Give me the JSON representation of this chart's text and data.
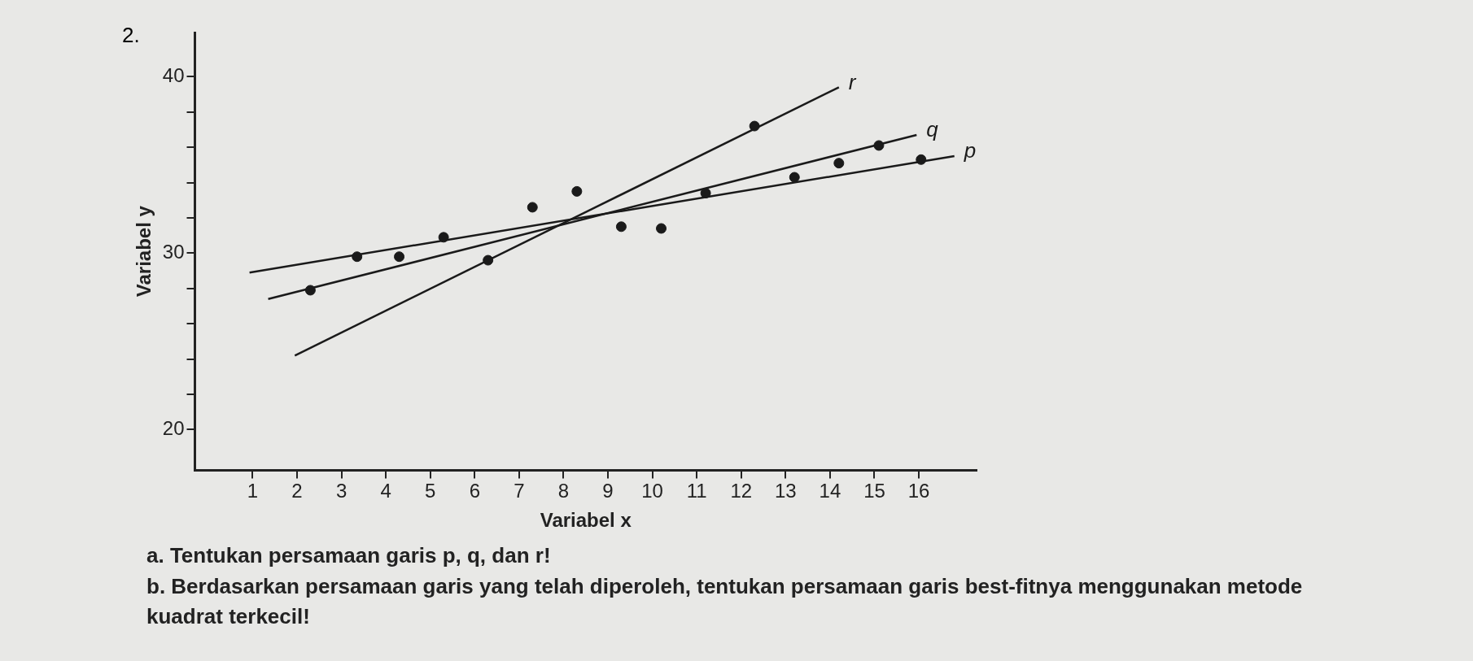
{
  "chart_data": {
    "type": "scatter",
    "xlabel": "Variabel x",
    "ylabel": "Variabel y",
    "xlim": [
      -0.3,
      17.3
    ],
    "ylim": [
      17.7,
      42.5
    ],
    "xticks": [
      1,
      2,
      3,
      4,
      5,
      6,
      7,
      8,
      9,
      10,
      11,
      12,
      13,
      14,
      15,
      16
    ],
    "yticks": [
      20,
      {
        "value": 22,
        "label": null
      },
      {
        "value": 24,
        "label": null
      },
      {
        "value": 26,
        "label": null
      },
      {
        "value": 28,
        "label": null
      },
      30,
      {
        "value": 32,
        "label": null
      },
      {
        "value": 34,
        "label": null
      },
      {
        "value": 36,
        "label": null
      },
      {
        "value": 38,
        "label": null
      },
      40
    ],
    "grid": false,
    "legend": false,
    "marker": "circle",
    "series": [
      {
        "color": "#1a1a1a",
        "x": [
          2.3,
          3.35,
          4.3,
          5.3,
          6.3,
          7.3,
          8.3,
          9.3,
          10.2,
          11.2,
          12.3,
          13.2,
          14.2,
          15.1,
          16.05
        ],
        "values": [
          27.9,
          29.8,
          29.8,
          30.9,
          29.6,
          32.6,
          33.5,
          31.5,
          31.4,
          33.4,
          37.2,
          34.3,
          35.1,
          36.1,
          35.3
        ]
      },
      {
        "type": "line",
        "name": "r",
        "marker": "none",
        "color": "#1a1a1a",
        "x": [
          1.95,
          14.2
        ],
        "values": [
          24.2,
          39.4
        ]
      },
      {
        "type": "line",
        "name": "q",
        "marker": "none",
        "color": "#1a1a1a",
        "x": [
          1.35,
          15.95
        ],
        "values": [
          27.4,
          36.7
        ]
      },
      {
        "type": "line",
        "name": "p",
        "marker": "none",
        "color": "#1a1a1a",
        "x": [
          0.93,
          16.8
        ],
        "values": [
          28.9,
          35.5
        ]
      }
    ],
    "annotations": [
      "2.",
      "a. Tentukan persamaan garis p, q, dan r!",
      "b. Berdasarkan persamaan garis yang telah diperoleh, tentukan persamaan garis best-fitnya menggunakan metode kuadrat terkecil!"
    ]
  }
}
